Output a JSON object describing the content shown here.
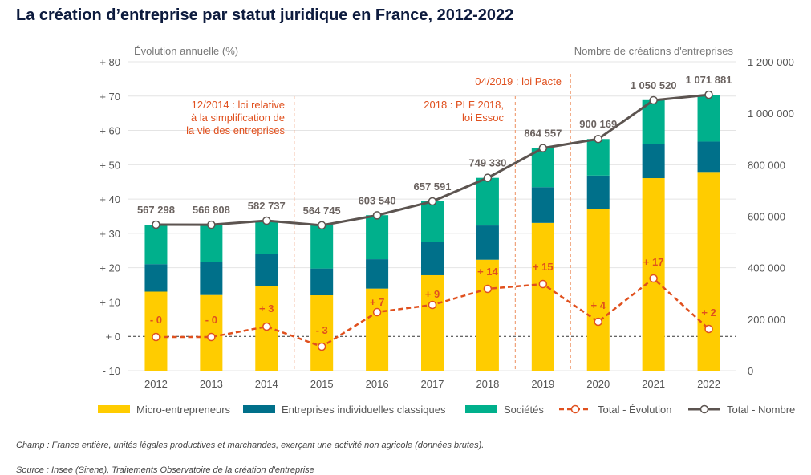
{
  "page": {
    "title": "La création d’entreprise par statut juridique en France, 2012-2022",
    "footnote_champ": "Champ : France entière, unités légales productives et marchandes, exerçant une activité non agricole (données brutes).",
    "footnote_source": "Source : Insee (Sirene), Traitements Observatoire de la création d'entreprise"
  },
  "chart_data": {
    "type": "bar",
    "stacked": true,
    "title": "La création d’entreprise par statut juridique en France, 2012-2022",
    "left_axis": {
      "label": "Évolution annuelle (%)",
      "range": [
        -10,
        80
      ],
      "ticks": [
        80,
        70,
        60,
        50,
        40,
        30,
        20,
        10,
        0,
        -10
      ],
      "tick_labels": [
        "+ 80",
        "+ 70",
        "+ 60",
        "+ 50",
        "+ 40",
        "+ 30",
        "+ 20",
        "+ 10",
        "+ 0",
        "- 10"
      ]
    },
    "right_axis": {
      "label": "Nombre de créations d'entreprises",
      "range": [
        0,
        1200000
      ],
      "ticks": [
        1200000,
        1000000,
        800000,
        600000,
        400000,
        200000,
        0
      ],
      "tick_labels": [
        "1 200 000",
        "1 000 000",
        "800 000",
        "600 000",
        "400 000",
        "200 000",
        "0"
      ]
    },
    "categories": [
      "2012",
      "2013",
      "2014",
      "2015",
      "2016",
      "2017",
      "2018",
      "2019",
      "2020",
      "2021",
      "2022"
    ],
    "series": [
      {
        "name": "Micro-entrepreneurs",
        "kind": "bar",
        "axis": "right",
        "color": "#ffcc00",
        "values": [
          307000,
          294000,
          329000,
          293000,
          319000,
          371000,
          431000,
          574000,
          628000,
          748000,
          772000
        ]
      },
      {
        "name": "Entreprises individuelles classiques",
        "kind": "bar",
        "axis": "right",
        "color": "#00708a",
        "values": [
          107000,
          129000,
          126000,
          104000,
          114000,
          129000,
          133000,
          139000,
          130000,
          131000,
          118000
        ]
      },
      {
        "name": "Sociétés",
        "kind": "bar",
        "axis": "right",
        "color": "#00b08c",
        "values": [
          153000,
          144000,
          128000,
          168000,
          171000,
          158000,
          185000,
          152000,
          142000,
          172000,
          182000
        ]
      },
      {
        "name": "Total - Évolution",
        "kind": "line",
        "axis": "left",
        "color": "#e0501e",
        "dashed": true,
        "values": [
          0,
          0,
          3,
          -3,
          7,
          9,
          14,
          15,
          4,
          17,
          2
        ],
        "labels": [
          "- 0",
          "- 0",
          "+ 3",
          "- 3",
          "+ 7",
          "+ 9",
          "+ 14",
          "+ 15",
          "+ 4",
          "+ 17",
          "+ 2"
        ]
      },
      {
        "name": "Total - Nombre",
        "kind": "line",
        "axis": "right",
        "color": "#5c5450",
        "values": [
          567298,
          566808,
          582737,
          564745,
          603540,
          657591,
          749330,
          864557,
          900169,
          1050520,
          1071881
        ],
        "labels": [
          "567 298",
          "566 808",
          "582 737",
          "564 745",
          "603 540",
          "657 591",
          "749 330",
          "864 557",
          "900 169",
          "1 050 520",
          "1 071 881"
        ]
      }
    ],
    "annotations": [
      {
        "text_lines": [
          "12/2014 : loi relative",
          "à la simplification de",
          "la vie des entreprises"
        ],
        "after": "2014"
      },
      {
        "text_lines": [
          "2018 : PLF 2018,",
          "loi Essoc"
        ],
        "after": "2018"
      },
      {
        "text_lines": [
          "04/2019 : loi Pacte"
        ],
        "after": "2019"
      }
    ],
    "legend_position": "bottom",
    "grid": true
  }
}
